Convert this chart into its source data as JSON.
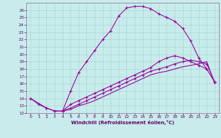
{
  "xlabel": "Windchill (Refroidissement éolien,°C)",
  "bg_color": "#c8ecec",
  "grid_color": "#aad4d4",
  "line_color": "#990099",
  "xlim": [
    -0.5,
    23.5
  ],
  "ylim": [
    12,
    27
  ],
  "xticks": [
    0,
    1,
    2,
    3,
    4,
    5,
    6,
    7,
    8,
    9,
    10,
    11,
    12,
    13,
    14,
    15,
    16,
    17,
    18,
    19,
    20,
    21,
    22,
    23
  ],
  "yticks": [
    12,
    13,
    14,
    15,
    16,
    17,
    18,
    19,
    20,
    21,
    22,
    23,
    24,
    25,
    26
  ],
  "line1_x": [
    0,
    1,
    2,
    3,
    4,
    5,
    6,
    7,
    8,
    9,
    10,
    11,
    12,
    13,
    14,
    15,
    16,
    17,
    18,
    19,
    20,
    21,
    22
  ],
  "line1_y": [
    14.0,
    13.2,
    12.7,
    12.3,
    12.3,
    15.0,
    17.5,
    19.0,
    20.5,
    22.0,
    23.2,
    25.2,
    26.3,
    26.5,
    26.5,
    26.2,
    25.5,
    25.0,
    24.5,
    23.5,
    21.8,
    19.5,
    18.0
  ],
  "line2_x": [
    0,
    2,
    3,
    4,
    5,
    6,
    7,
    8,
    9,
    10,
    11,
    12,
    13,
    14,
    15,
    16,
    17,
    18,
    19,
    20,
    21,
    22,
    23
  ],
  "line2_y": [
    14.0,
    12.7,
    12.3,
    12.3,
    13.2,
    13.7,
    14.2,
    14.7,
    15.2,
    15.7,
    16.2,
    16.7,
    17.2,
    17.7,
    18.2,
    19.0,
    19.5,
    19.8,
    19.5,
    19.0,
    18.5,
    18.0,
    16.2
  ],
  "line3_x": [
    4,
    5,
    6,
    7,
    8,
    9,
    10,
    11,
    12,
    13,
    14,
    15,
    16,
    17,
    18,
    19,
    20,
    21,
    22,
    23
  ],
  "line3_y": [
    12.3,
    12.7,
    13.2,
    13.7,
    14.2,
    14.7,
    15.2,
    15.7,
    16.2,
    16.7,
    17.2,
    17.7,
    18.0,
    18.3,
    18.7,
    19.0,
    19.2,
    19.0,
    18.7,
    16.2
  ],
  "line4_x": [
    4,
    5,
    6,
    7,
    8,
    9,
    10,
    11,
    12,
    13,
    14,
    15,
    16,
    17,
    18,
    19,
    20,
    21,
    22,
    23
  ],
  "line4_y": [
    12.3,
    12.5,
    13.0,
    13.3,
    13.7,
    14.2,
    14.7,
    15.2,
    15.7,
    16.2,
    16.7,
    17.2,
    17.5,
    17.7,
    18.0,
    18.3,
    18.5,
    18.7,
    19.0,
    16.0
  ]
}
